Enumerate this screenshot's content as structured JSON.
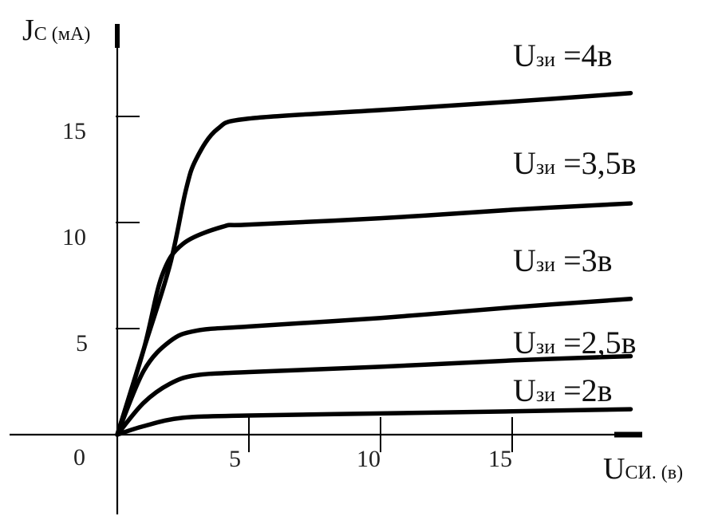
{
  "chart_data": {
    "type": "line",
    "title": "",
    "ylabel": {
      "main": "J",
      "sub": "С (мА)"
    },
    "xlabel": {
      "main": "U",
      "sub": "СИ. (в)"
    },
    "xlim": [
      0,
      19.5
    ],
    "ylim": [
      0,
      18
    ],
    "x_ticks": [
      5,
      10,
      15
    ],
    "y_ticks": [
      5,
      10,
      15
    ],
    "origin_label": "0",
    "grid": false,
    "series": [
      {
        "name": "Uзи =2в",
        "label": {
          "main": "U",
          "sub": "зи",
          "suffix": " =2в"
        },
        "points": [
          [
            0,
            0
          ],
          [
            1,
            0.4
          ],
          [
            2.5,
            0.8
          ],
          [
            5,
            0.9
          ],
          [
            10,
            1.0
          ],
          [
            15,
            1.1
          ],
          [
            19.5,
            1.2
          ]
        ]
      },
      {
        "name": "Uзи =2,5в",
        "label": {
          "main": "U",
          "sub": "зи",
          "suffix": " =2,5в"
        },
        "points": [
          [
            0,
            0
          ],
          [
            1,
            1.5
          ],
          [
            2,
            2.4
          ],
          [
            3,
            2.8
          ],
          [
            5,
            2.95
          ],
          [
            10,
            3.2
          ],
          [
            15,
            3.5
          ],
          [
            19.5,
            3.7
          ]
        ]
      },
      {
        "name": "Uзи =3в",
        "label": {
          "main": "U",
          "sub": "зи",
          "suffix": " =3в"
        },
        "points": [
          [
            0,
            0
          ],
          [
            1,
            3
          ],
          [
            2,
            4.4
          ],
          [
            3,
            4.9
          ],
          [
            5,
            5.1
          ],
          [
            10,
            5.5
          ],
          [
            15,
            6
          ],
          [
            19.5,
            6.4
          ]
        ]
      },
      {
        "name": "Uзи =3,5в",
        "label": {
          "main": "U",
          "sub": "зи",
          "suffix": " =3,5в"
        },
        "points": [
          [
            0,
            0
          ],
          [
            1,
            4
          ],
          [
            1.7,
            7.5
          ],
          [
            2.5,
            9
          ],
          [
            4,
            9.8
          ],
          [
            5,
            9.9
          ],
          [
            10,
            10.2
          ],
          [
            15,
            10.6
          ],
          [
            19.5,
            10.9
          ]
        ]
      },
      {
        "name": "Uзи =4в",
        "label": {
          "main": "U",
          "sub": "зи",
          "suffix": " =4в"
        },
        "points": [
          [
            0,
            0
          ],
          [
            1,
            4
          ],
          [
            2,
            8
          ],
          [
            2.6,
            11.5
          ],
          [
            3,
            13
          ],
          [
            3.8,
            14.4
          ],
          [
            5,
            14.9
          ],
          [
            10,
            15.3
          ],
          [
            15,
            15.7
          ],
          [
            19.5,
            16.1
          ]
        ]
      }
    ]
  }
}
